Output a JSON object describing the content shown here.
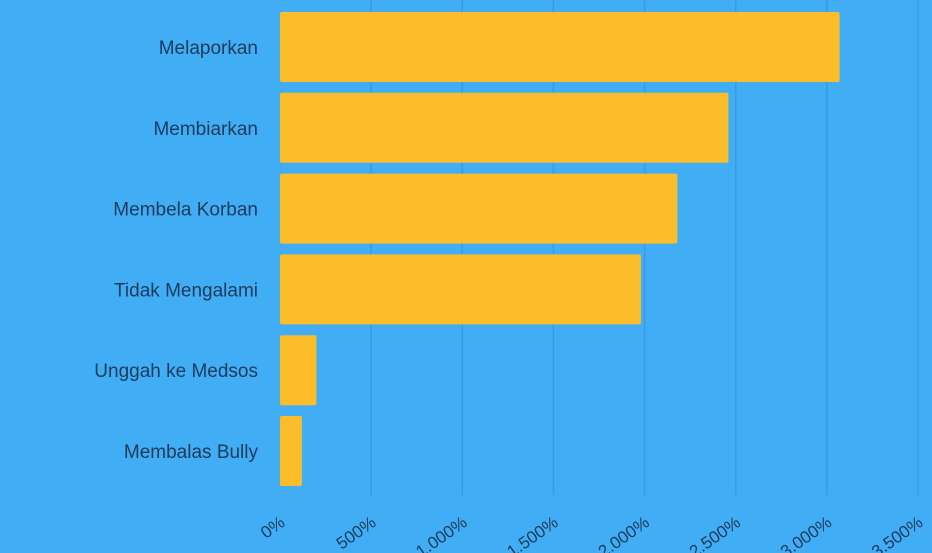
{
  "chart_data": {
    "type": "bar",
    "orientation": "horizontal",
    "categories": [
      "Melaporkan",
      "Membiarkan",
      "Membela Korban",
      "Tidak Mengalami",
      "Unggah ke Medsos",
      "Membalas Bully"
    ],
    "values": [
      3070,
      2460,
      2180,
      1980,
      200,
      120
    ],
    "xlim": [
      0,
      3500
    ],
    "x_ticks": [
      0,
      500,
      1000,
      1500,
      2000,
      2500,
      3000,
      3500
    ],
    "x_tick_labels": [
      "0%",
      "500%",
      "1.000%",
      "1.500%",
      "2.000%",
      "2.500%",
      "3.000%",
      "3.500%"
    ],
    "title": "",
    "xlabel": "",
    "ylabel": "",
    "grid": "vertical",
    "legend": "none",
    "colors": {
      "background": "#41adf5",
      "bar": "#fbbd2a",
      "grid": "#3a9be0",
      "text": "#1f3b5a"
    }
  }
}
